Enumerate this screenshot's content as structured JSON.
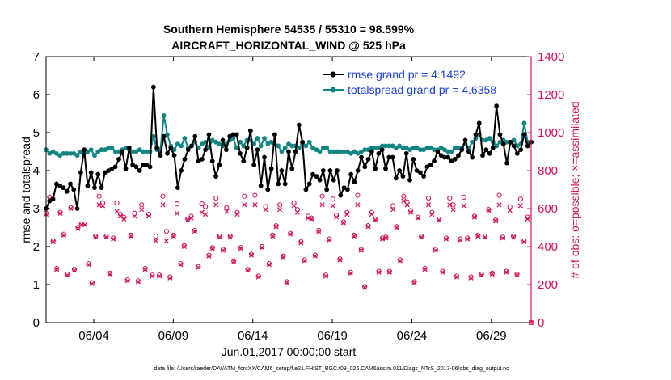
{
  "chart_data": {
    "type": "line",
    "title": "Southern Hemisphere 54535 / 55310 = 98.599%",
    "subtitle": "AIRCRAFT_HORIZONTAL_WIND @ 525 hPa",
    "xlabel": "Jun.01,2017 00:00:00 start",
    "ylabel_left": "rmse and totalspread",
    "ylabel_right": "# of obs: o=possible; ×=assimilated",
    "footer": "data file: /Users/raeder/DAI/ATM_forcXX/CAM6_setup/f.e21.FHIST_BGC.f09_025.CAM6assim.011/Diags_NTrS_2017-06/obs_diag_output.nc",
    "xlim": [
      1,
      31.5
    ],
    "ylim_left": [
      0,
      7
    ],
    "ylim_right": [
      0,
      1400
    ],
    "x_ticks": [
      4,
      9,
      14,
      19,
      24,
      29
    ],
    "x_tick_labels": [
      "06/04",
      "06/09",
      "06/14",
      "06/19",
      "06/24",
      "06/29"
    ],
    "y_ticks_left": [
      0,
      1,
      2,
      3,
      4,
      5,
      6,
      7
    ],
    "y_ticks_right": [
      0,
      200,
      400,
      600,
      800,
      1000,
      1200,
      1400
    ],
    "colors": {
      "rmse": "#000000",
      "spread": "#138484",
      "obs": "#d3135a",
      "legend_text": "#1a3fd6"
    },
    "series": [
      {
        "name": "rmse grand pr = 4.1492",
        "values": [
          3.0,
          3.2,
          3.25,
          3.65,
          3.6,
          3.55,
          3.45,
          3.65,
          3.5,
          3.0,
          3.95,
          4.55,
          3.6,
          3.95,
          3.55,
          3.9,
          3.55,
          3.95,
          4.0,
          4.05,
          4.1,
          4.3,
          4.5,
          4.05,
          4.6,
          4.15,
          4.1,
          4.0,
          4.15,
          4.15,
          4.1,
          6.2,
          4.6,
          4.4,
          4.9,
          4.45,
          4.6,
          4.4,
          3.55,
          4.0,
          4.3,
          4.55,
          4.65,
          4.9,
          4.25,
          4.3,
          4.55,
          4.95,
          4.25,
          3.85,
          4.15,
          4.8,
          4.55,
          4.9,
          4.95,
          4.95,
          4.45,
          4.25,
          4.6,
          5.05,
          4.15,
          4.55,
          3.6,
          4.35,
          3.5,
          4.05,
          4.95,
          3.65,
          4.0,
          3.65,
          4.5,
          4.05,
          4.5,
          5.2,
          4.75,
          3.5,
          3.65,
          3.9,
          3.85,
          3.75,
          4.0,
          3.5,
          4.0,
          3.75,
          4.0,
          3.35,
          3.55,
          3.5,
          3.9,
          3.7,
          4.0,
          4.35,
          4.1,
          4.3,
          4.5,
          4.05,
          4.45,
          4.55,
          4.05,
          4.35,
          4.35,
          3.8,
          4.0,
          3.85,
          4.45,
          3.75,
          4.3,
          4.0,
          3.95,
          3.85,
          4.1,
          4.15,
          4.25,
          4.5,
          4.4,
          4.35,
          4.35,
          4.25,
          4.3,
          4.4,
          4.55,
          4.8,
          4.5,
          4.35,
          4.95,
          5.25,
          4.4,
          4.55,
          4.45,
          4.6,
          5.7,
          4.95,
          4.7,
          4.2,
          4.75,
          4.65,
          4.45,
          4.55,
          4.95,
          4.65,
          4.75
        ]
      },
      {
        "name": "totalspread grand pr = 4.6358",
        "values": [
          4.55,
          4.45,
          4.5,
          4.45,
          4.4,
          4.45,
          4.45,
          4.45,
          4.45,
          4.4,
          4.5,
          4.45,
          4.5,
          4.55,
          4.4,
          4.5,
          4.55,
          4.55,
          4.6,
          4.6,
          4.5,
          4.5,
          4.55,
          4.6,
          4.55,
          4.5,
          4.5,
          4.55,
          4.5,
          4.5,
          4.5,
          4.9,
          4.55,
          4.55,
          5.45,
          4.95,
          4.65,
          4.55,
          4.7,
          4.65,
          4.85,
          4.6,
          4.65,
          4.75,
          4.6,
          4.7,
          4.75,
          4.6,
          4.8,
          4.75,
          4.7,
          4.65,
          4.7,
          4.8,
          4.85,
          4.6,
          4.75,
          4.65,
          4.8,
          4.8,
          4.7,
          4.85,
          4.65,
          4.85,
          4.7,
          4.75,
          4.7,
          4.65,
          4.5,
          4.6,
          4.7,
          4.65,
          4.65,
          4.6,
          4.7,
          4.65,
          4.75,
          4.6,
          4.55,
          4.5,
          4.6,
          4.6,
          4.5,
          4.5,
          4.5,
          4.5,
          4.5,
          4.5,
          4.45,
          4.5,
          4.45,
          4.5,
          4.55,
          4.55,
          4.6,
          4.6,
          4.6,
          4.65,
          4.65,
          4.65,
          4.65,
          4.6,
          4.65,
          4.6,
          4.6,
          4.55,
          4.6,
          4.6,
          4.55,
          4.55,
          4.6,
          4.6,
          4.55,
          4.55,
          4.6,
          4.55,
          4.5,
          4.5,
          4.6,
          4.6,
          4.6,
          4.7,
          4.6,
          4.75,
          4.85,
          4.95,
          4.8,
          4.8,
          4.85,
          4.75,
          4.65,
          4.75,
          4.8,
          4.75,
          4.75,
          4.8,
          4.65,
          4.7,
          5.25,
          4.75,
          4.75
        ]
      }
    ],
    "obs_possible": [
      575,
      660,
      430,
      285,
      580,
      465,
      255,
      605,
      280,
      500,
      520,
      520,
      310,
      210,
      455,
      665,
      630,
      455,
      260,
      445,
      630,
      570,
      555,
      225,
      460,
      575,
      220,
      620,
      285,
      570,
      250,
      455,
      250,
      665,
      480,
      240,
      460,
      625,
      310,
      405,
      545,
      560,
      485,
      295,
      625,
      610,
      355,
      395,
      655,
      455,
      385,
      605,
      455,
      325,
      580,
      395,
      665,
      280,
      360,
      670,
      245,
      400,
      610,
      310,
      460,
      510,
      620,
      350,
      215,
      470,
      630,
      595,
      425,
      330,
      560,
      550,
      355,
      485,
      665,
      250,
      440,
      650,
      565,
      335,
      530,
      580,
      265,
      460,
      670,
      385,
      190,
      510,
      580,
      545,
      270,
      445,
      450,
      270,
      615,
      505,
      330,
      665,
      635,
      590,
      215,
      555,
      455,
      285,
      655,
      580,
      385,
      545,
      270,
      445,
      655,
      620,
      245,
      440,
      660,
      445,
      240,
      560,
      460,
      255,
      455,
      595,
      260,
      540,
      670,
      450,
      270,
      610,
      455,
      255,
      650,
      430,
      555,
      0
    ],
    "obs_assimilated": [
      570,
      650,
      425,
      280,
      575,
      460,
      250,
      600,
      275,
      495,
      515,
      515,
      305,
      205,
      450,
      620,
      615,
      450,
      255,
      440,
      585,
      560,
      545,
      220,
      455,
      560,
      215,
      595,
      280,
      560,
      245,
      430,
      245,
      620,
      430,
      235,
      455,
      575,
      305,
      400,
      540,
      550,
      480,
      290,
      580,
      570,
      350,
      390,
      620,
      450,
      380,
      585,
      450,
      320,
      570,
      390,
      620,
      275,
      355,
      620,
      240,
      395,
      595,
      305,
      455,
      505,
      595,
      345,
      210,
      465,
      615,
      580,
      420,
      325,
      550,
      545,
      350,
      480,
      620,
      245,
      435,
      615,
      555,
      330,
      525,
      570,
      260,
      455,
      620,
      380,
      185,
      505,
      570,
      540,
      265,
      440,
      445,
      265,
      595,
      500,
      325,
      640,
      620,
      580,
      210,
      550,
      450,
      280,
      620,
      570,
      380,
      540,
      265,
      440,
      620,
      595,
      240,
      435,
      615,
      440,
      235,
      555,
      455,
      250,
      450,
      590,
      255,
      535,
      620,
      445,
      265,
      590,
      450,
      250,
      615,
      425,
      545,
      0
    ]
  }
}
